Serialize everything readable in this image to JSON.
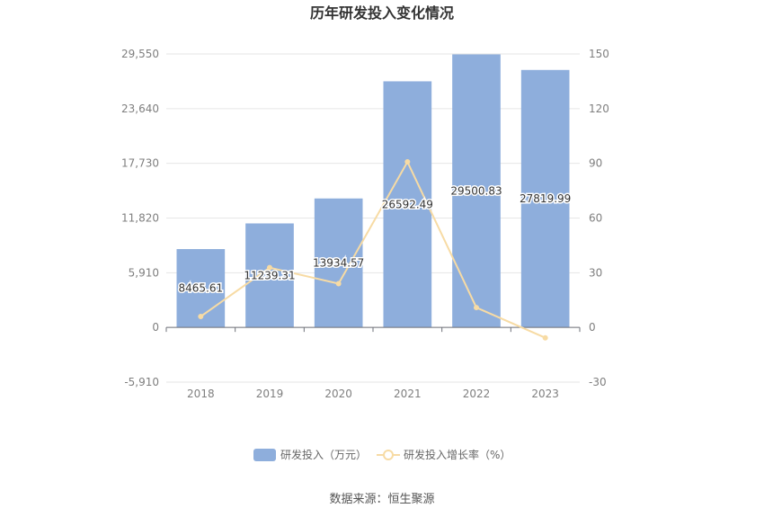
{
  "chart_data": {
    "type": "bar",
    "title": "历年研发投入变化情况",
    "categories": [
      "2018",
      "2019",
      "2020",
      "2021",
      "2022",
      "2023"
    ],
    "series": [
      {
        "name": "研发投入（万元）",
        "type": "bar",
        "axis": "left",
        "values": [
          8465.61,
          11239.31,
          13934.57,
          26592.49,
          29500.83,
          27819.99
        ],
        "labels": [
          "8465.61",
          "11239.31",
          "13934.57",
          "26592.49",
          "29500.83",
          "27819.99"
        ]
      },
      {
        "name": "研发投入增长率（%）",
        "type": "line",
        "axis": "right",
        "values": [
          6.0,
          32.8,
          24.0,
          90.8,
          10.9,
          -5.7
        ]
      }
    ],
    "y_left": {
      "ticks": [
        "29,550",
        "23,640",
        "17,730",
        "11,820",
        "5,910",
        "0",
        "-5,910"
      ],
      "min": -5910,
      "max": 29550
    },
    "y_right": {
      "ticks": [
        "150",
        "120",
        "90",
        "60",
        "30",
        "0",
        "-30"
      ],
      "min": -30,
      "max": 150
    },
    "grid": true,
    "legend_position": "bottom",
    "colors": {
      "bar": "#8eaedc",
      "line": "#f7dba4",
      "grid": "#e6e6e6",
      "axis": "#6e7079"
    }
  },
  "source": "数据来源：恒生聚源"
}
